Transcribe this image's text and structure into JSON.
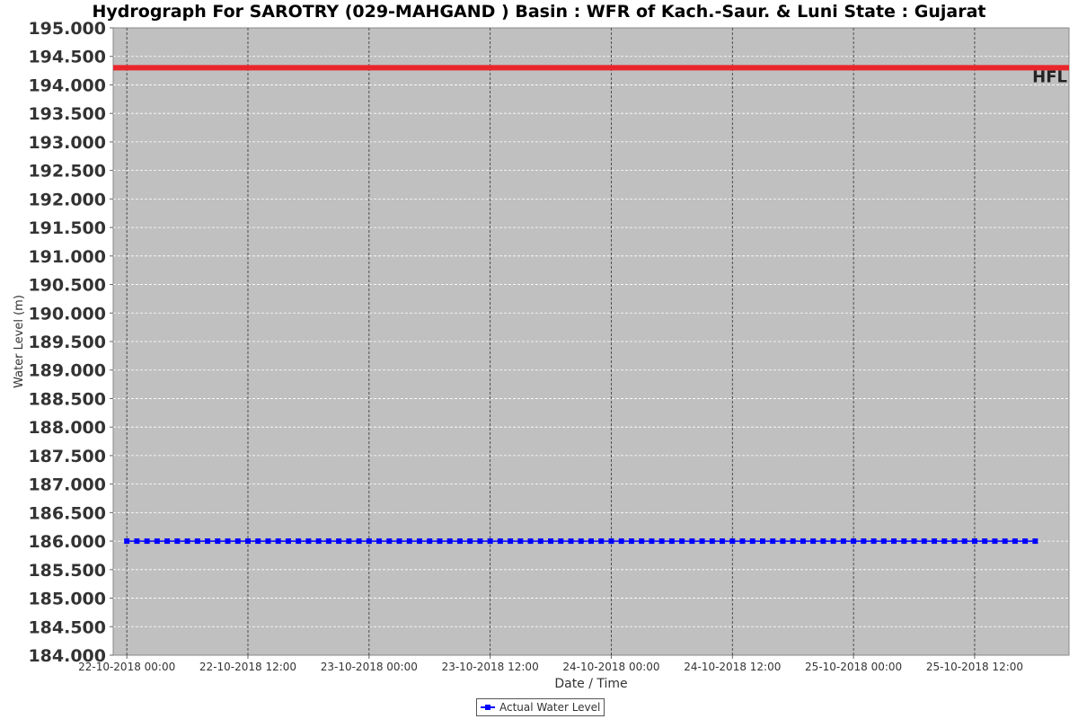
{
  "chart_data": {
    "type": "line",
    "title": "Hydrograph For SAROTRY (029-MAHGAND ) Basin : WFR of Kach.-Saur. & Luni State : Gujarat",
    "xlabel": "Date / Time",
    "ylabel": "Water Level (m)",
    "ylim": [
      184.0,
      195.0
    ],
    "xlim": [
      "22-10-2018 00:00",
      "25-10-2018 20:00"
    ],
    "yticks": [
      "184.000",
      "184.500",
      "185.000",
      "185.500",
      "186.000",
      "186.500",
      "187.000",
      "187.500",
      "188.000",
      "188.500",
      "189.000",
      "189.500",
      "190.000",
      "190.500",
      "191.000",
      "191.500",
      "192.000",
      "192.500",
      "193.000",
      "193.500",
      "194.000",
      "194.500",
      "195.000"
    ],
    "xticks": [
      "22-10-2018 00:00",
      "22-10-2018 12:00",
      "23-10-2018 00:00",
      "23-10-2018 12:00",
      "24-10-2018 00:00",
      "24-10-2018 12:00",
      "25-10-2018 00:00",
      "25-10-2018 12:00"
    ],
    "grid": true,
    "legend_position": "bottom-center",
    "background_color": "#c0c0c0",
    "reference_lines": [
      {
        "label": "HFL",
        "value": 194.3,
        "color": "#e8262b"
      }
    ],
    "series": [
      {
        "name": "Actual Water Level",
        "color": "#0000ff",
        "marker": "square",
        "start": "22-10-2018 00:00",
        "end": "25-10-2018 18:00",
        "interval_hours": 1,
        "value": 186.0
      }
    ]
  }
}
